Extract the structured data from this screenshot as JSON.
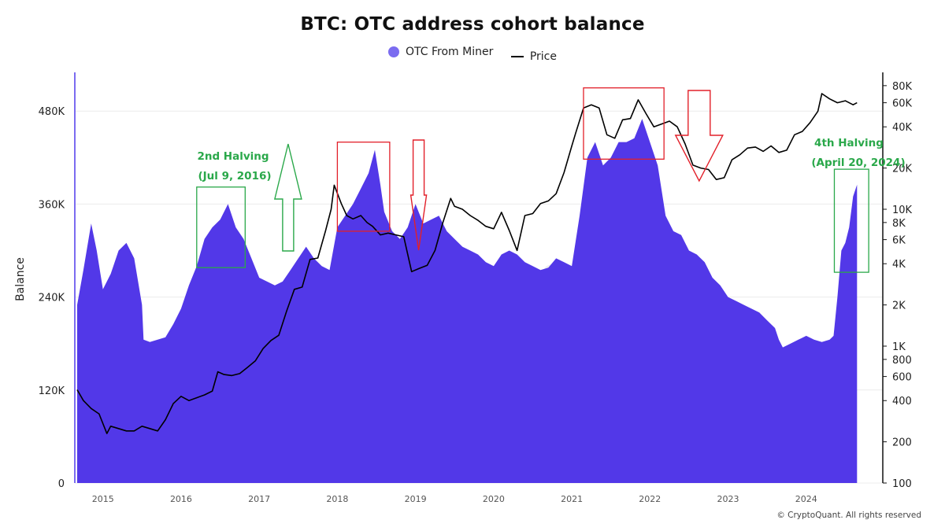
{
  "title": "BTC: OTC address cohort balance",
  "legend": {
    "series1": "OTC From Miner",
    "series2": "Price"
  },
  "colors": {
    "balance_fill": "#5238e8",
    "balance_legend": "#7b6cf0",
    "price_line": "#000000",
    "red_annotation": "#e2202a",
    "green_annotation": "#2aa84a"
  },
  "footer": {
    "copyright": "© CryptoQuant. All rights reserved",
    "watermark": "CryptoQuant"
  },
  "chart_data": {
    "type": "area",
    "title": "BTC: OTC address cohort balance",
    "ylabel": "Balance",
    "ylim": [
      0,
      530000
    ],
    "y_ticks": [
      0,
      120000,
      240000,
      360000,
      480000
    ],
    "y_tick_labels": [
      "0",
      "120K",
      "240K",
      "360K",
      "480K"
    ],
    "y2_scale": "log",
    "y2lim": [
      100,
      100000
    ],
    "y2_ticks": [
      100,
      200,
      400,
      600,
      800,
      1000,
      2000,
      4000,
      6000,
      8000,
      10000,
      20000,
      40000,
      60000,
      80000
    ],
    "y2_tick_labels": [
      "100",
      "200",
      "400",
      "600",
      "800",
      "1K",
      "2K",
      "4K",
      "6K",
      "8K",
      "10K",
      "20K",
      "40K",
      "60K",
      "80K"
    ],
    "xlim": [
      2014.64,
      2024.98
    ],
    "x_ticks": [
      2015,
      2016,
      2017,
      2018,
      2019,
      2020,
      2021,
      2022,
      2023,
      2024
    ],
    "x_tick_labels": [
      "2015",
      "2016",
      "2017",
      "2018",
      "2019",
      "2020",
      "2021",
      "2022",
      "2023",
      "2024"
    ],
    "series": [
      {
        "name": "OTC From Miner",
        "axis": "left",
        "x": [
          2014.67,
          2014.75,
          2014.85,
          2014.92,
          2015.0,
          2015.1,
          2015.2,
          2015.3,
          2015.4,
          2015.5,
          2015.52,
          2015.6,
          2015.7,
          2015.8,
          2015.9,
          2016.0,
          2016.1,
          2016.2,
          2016.3,
          2016.4,
          2016.5,
          2016.6,
          2016.7,
          2016.8,
          2016.9,
          2017.0,
          2017.1,
          2017.2,
          2017.3,
          2017.4,
          2017.5,
          2017.6,
          2017.7,
          2017.8,
          2017.9,
          2018.0,
          2018.1,
          2018.2,
          2018.3,
          2018.4,
          2018.48,
          2018.55,
          2018.6,
          2018.7,
          2018.8,
          2018.9,
          2019.0,
          2019.1,
          2019.2,
          2019.3,
          2019.4,
          2019.5,
          2019.6,
          2019.7,
          2019.8,
          2019.9,
          2020.0,
          2020.1,
          2020.2,
          2020.3,
          2020.4,
          2020.5,
          2020.6,
          2020.7,
          2020.8,
          2020.9,
          2021.0,
          2021.1,
          2021.2,
          2021.3,
          2021.4,
          2021.5,
          2021.6,
          2021.7,
          2021.8,
          2021.9,
          2022.0,
          2022.1,
          2022.2,
          2022.3,
          2022.4,
          2022.5,
          2022.6,
          2022.7,
          2022.8,
          2022.9,
          2023.0,
          2023.1,
          2023.2,
          2023.3,
          2023.4,
          2023.5,
          2023.6,
          2023.65,
          2023.7,
          2023.8,
          2023.9,
          2024.0,
          2024.1,
          2024.2,
          2024.3,
          2024.35,
          2024.4,
          2024.45,
          2024.5,
          2024.55,
          2024.6,
          2024.65
        ],
        "values": [
          230000,
          275000,
          335000,
          300000,
          250000,
          270000,
          300000,
          310000,
          290000,
          230000,
          185000,
          182000,
          185000,
          188000,
          205000,
          225000,
          255000,
          280000,
          315000,
          330000,
          340000,
          360000,
          330000,
          315000,
          290000,
          265000,
          260000,
          255000,
          260000,
          275000,
          290000,
          305000,
          290000,
          280000,
          275000,
          330000,
          345000,
          360000,
          380000,
          400000,
          430000,
          385000,
          350000,
          325000,
          315000,
          330000,
          360000,
          335000,
          340000,
          345000,
          325000,
          315000,
          305000,
          300000,
          295000,
          285000,
          280000,
          295000,
          300000,
          295000,
          285000,
          280000,
          275000,
          278000,
          290000,
          285000,
          280000,
          345000,
          420000,
          440000,
          410000,
          420000,
          440000,
          440000,
          445000,
          470000,
          440000,
          410000,
          345000,
          325000,
          320000,
          300000,
          295000,
          285000,
          265000,
          255000,
          240000,
          235000,
          230000,
          225000,
          220000,
          210000,
          200000,
          185000,
          175000,
          180000,
          185000,
          190000,
          185000,
          182000,
          185000,
          190000,
          240000,
          300000,
          310000,
          330000,
          370000,
          385000
        ]
      },
      {
        "name": "Price",
        "axis": "right",
        "x": [
          2014.67,
          2014.75,
          2014.85,
          2014.95,
          2015.05,
          2015.1,
          2015.2,
          2015.3,
          2015.4,
          2015.5,
          2015.6,
          2015.7,
          2015.8,
          2015.9,
          2016.0,
          2016.1,
          2016.2,
          2016.3,
          2016.4,
          2016.47,
          2016.55,
          2016.65,
          2016.75,
          2016.85,
          2016.95,
          2017.05,
          2017.15,
          2017.25,
          2017.35,
          2017.45,
          2017.55,
          2017.65,
          2017.75,
          2017.85,
          2017.92,
          2017.96,
          2018.05,
          2018.12,
          2018.2,
          2018.3,
          2018.38,
          2018.45,
          2018.55,
          2018.65,
          2018.75,
          2018.85,
          2018.95,
          2019.05,
          2019.15,
          2019.25,
          2019.35,
          2019.45,
          2019.5,
          2019.6,
          2019.7,
          2019.8,
          2019.9,
          2020.0,
          2020.1,
          2020.2,
          2020.3,
          2020.4,
          2020.5,
          2020.6,
          2020.7,
          2020.8,
          2020.9,
          2021.0,
          2021.05,
          2021.15,
          2021.25,
          2021.35,
          2021.45,
          2021.55,
          2021.65,
          2021.75,
          2021.85,
          2021.95,
          2022.05,
          2022.15,
          2022.25,
          2022.35,
          2022.45,
          2022.55,
          2022.65,
          2022.75,
          2022.85,
          2022.95,
          2023.05,
          2023.15,
          2023.25,
          2023.35,
          2023.45,
          2023.55,
          2023.65,
          2023.75,
          2023.85,
          2023.95,
          2024.05,
          2024.15,
          2024.2,
          2024.3,
          2024.4,
          2024.5,
          2024.6,
          2024.65
        ],
        "values": [
          480,
          400,
          350,
          320,
          230,
          260,
          250,
          240,
          240,
          260,
          250,
          240,
          290,
          380,
          430,
          400,
          420,
          440,
          470,
          650,
          620,
          610,
          630,
          700,
          780,
          960,
          1100,
          1200,
          1800,
          2600,
          2700,
          4300,
          4400,
          7000,
          10000,
          15000,
          11000,
          9000,
          8500,
          9000,
          8000,
          7500,
          6500,
          6700,
          6500,
          6300,
          3500,
          3700,
          3900,
          5000,
          8000,
          12000,
          10500,
          10000,
          9000,
          8300,
          7500,
          7200,
          9500,
          7000,
          5000,
          9000,
          9300,
          11000,
          11500,
          13000,
          18500,
          29000,
          36000,
          55000,
          58000,
          55000,
          35000,
          33000,
          45000,
          46000,
          63000,
          50000,
          40000,
          42000,
          44000,
          40000,
          30000,
          21000,
          20000,
          19500,
          16500,
          17000,
          23000,
          25000,
          28000,
          28500,
          26500,
          29000,
          26000,
          27000,
          35000,
          37000,
          43000,
          52000,
          70000,
          64000,
          60000,
          62000,
          58000,
          60000
        ]
      }
    ],
    "annotations": [
      {
        "type": "text",
        "text": "2nd Halving",
        "color": "green"
      },
      {
        "type": "text",
        "text": "(Jul 9, 2016)",
        "color": "green"
      },
      {
        "type": "text",
        "text": "4th Halving",
        "color": "green"
      },
      {
        "type": "text",
        "text": "(April 20, 2024)",
        "color": "green"
      },
      {
        "type": "box",
        "color": "green",
        "x_range": [
          2016.2,
          2016.82
        ],
        "y_range": [
          278000,
          382000
        ]
      },
      {
        "type": "box",
        "color": "green",
        "x_range": [
          2024.36,
          2024.8
        ],
        "y_range": [
          272000,
          405000
        ]
      },
      {
        "type": "box",
        "color": "red",
        "x_range": [
          2018.0,
          2018.67
        ],
        "y_range": [
          325000,
          440000
        ]
      },
      {
        "type": "box",
        "color": "red",
        "x_range": [
          2021.15,
          2022.18
        ],
        "y_range": [
          418000,
          510000
        ]
      },
      {
        "type": "arrow",
        "direction": "up",
        "color": "green",
        "x": 2017.37
      },
      {
        "type": "arrow",
        "direction": "down",
        "color": "red",
        "x": 2019.04
      },
      {
        "type": "arrow",
        "direction": "down",
        "color": "red",
        "x": 2022.63
      }
    ]
  }
}
